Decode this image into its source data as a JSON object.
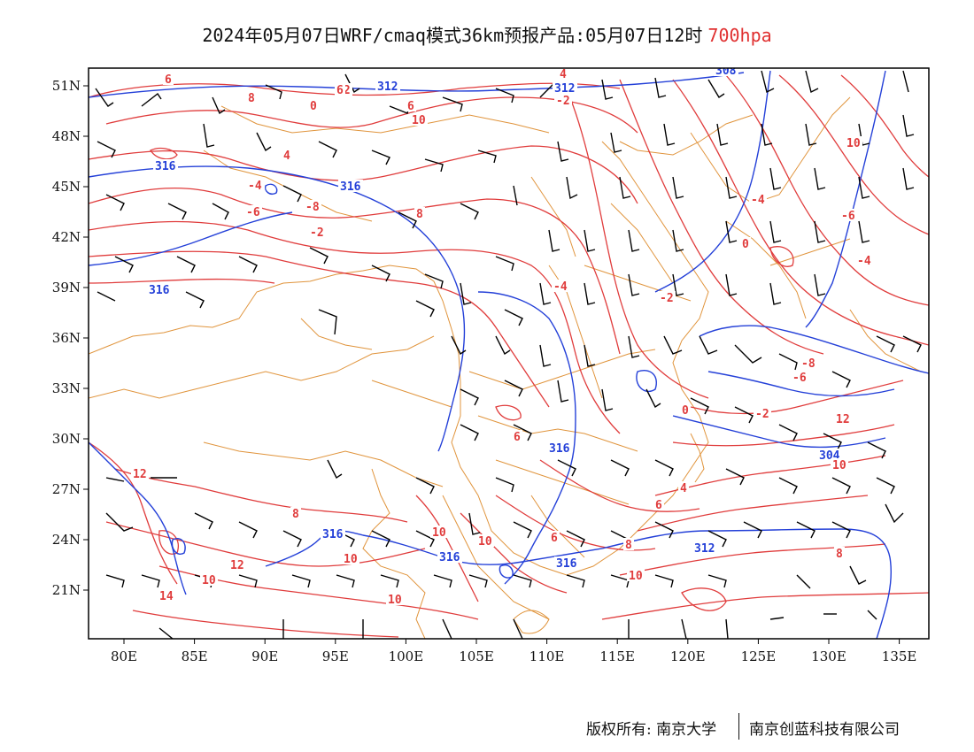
{
  "title": {
    "main": "2024年05月07日WRF/cmaq模式36km预报产品:05月07日12时",
    "level": "700hpa"
  },
  "map": {
    "lon_labels": [
      "80E",
      "85E",
      "90E",
      "95E",
      "100E",
      "105E",
      "110E",
      "115E",
      "120E",
      "125E",
      "130E",
      "135E"
    ],
    "lat_labels": [
      "51N",
      "48N",
      "45N",
      "42N",
      "39N",
      "36N",
      "33N",
      "30N",
      "27N",
      "24N",
      "21N"
    ],
    "colors": {
      "temperature": "#e03c3c",
      "height": "#2440d8",
      "boundary": "#e0943c",
      "wind_barb": "#000000",
      "frame": "#000000"
    },
    "height_labels": [
      "308",
      "312",
      "312",
      "316",
      "316",
      "316",
      "316",
      "316",
      "316",
      "316",
      "312",
      "304"
    ],
    "temperature_labels": [
      "0",
      "-2",
      "2",
      "0",
      "6",
      "10",
      "4",
      "-4",
      "-6",
      "8",
      "-8",
      "10",
      "-2",
      "0",
      "-4",
      "-6",
      "-8",
      "-6",
      "-4",
      "-4",
      "-2",
      "-2",
      "0",
      "-2",
      "6",
      "8",
      "4",
      "6",
      "6",
      "8",
      "10",
      "10",
      "10",
      "12",
      "8",
      "14",
      "12",
      "10",
      "10",
      "10",
      "12",
      "10",
      "4",
      "6",
      "6",
      "8"
    ]
  },
  "footer": {
    "copyright": "版权所有: 南京大学",
    "company": "南京创蓝科技有限公司"
  }
}
